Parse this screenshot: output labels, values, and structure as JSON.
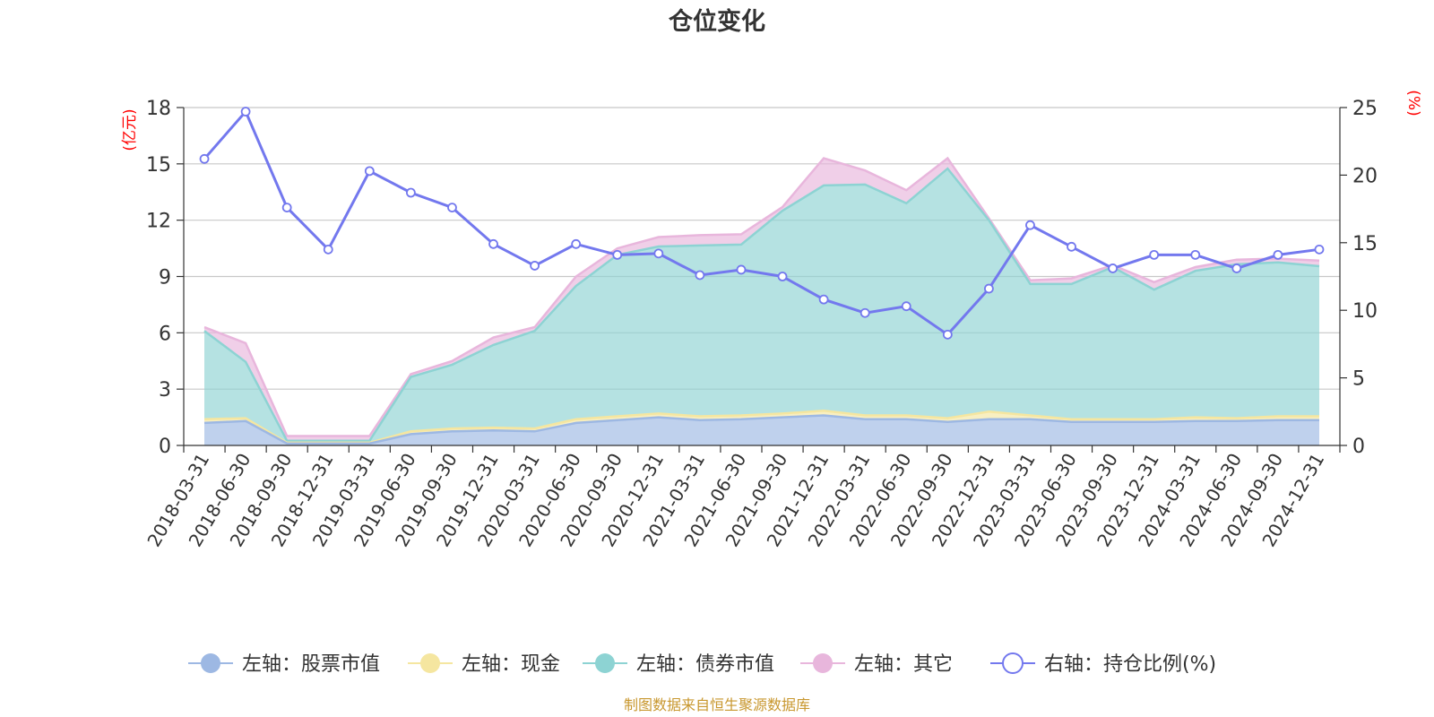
{
  "chart_data": {
    "type": "area",
    "title": "仓位变化",
    "source": "制图数据来自恒生聚源数据库",
    "left_axis": {
      "unit": "(亿元)",
      "ylim": [
        0,
        18
      ],
      "ticks": [
        0,
        3,
        6,
        9,
        12,
        15,
        18
      ]
    },
    "right_axis": {
      "unit": "(%)",
      "ylim": [
        0,
        25
      ],
      "ticks": [
        0,
        5,
        10,
        15,
        20,
        25
      ]
    },
    "categories": [
      "2018-03-31",
      "2018-06-30",
      "2018-09-30",
      "2018-12-31",
      "2019-03-31",
      "2019-06-30",
      "2019-09-30",
      "2019-12-31",
      "2020-03-31",
      "2020-06-30",
      "2020-09-30",
      "2020-12-31",
      "2021-03-31",
      "2021-06-30",
      "2021-09-30",
      "2021-12-31",
      "2022-03-31",
      "2022-06-30",
      "2022-09-30",
      "2022-12-31",
      "2023-03-31",
      "2023-06-30",
      "2023-09-30",
      "2023-12-31",
      "2024-03-31",
      "2024-06-30",
      "2024-09-30",
      "2024-12-31"
    ],
    "series": [
      {
        "name": "左轴：股票市值",
        "axis": "left",
        "stack": true,
        "color": "#9db8e3",
        "values": [
          1.2,
          1.3,
          0.1,
          0.1,
          0.1,
          0.6,
          0.75,
          0.8,
          0.75,
          1.2,
          1.35,
          1.5,
          1.35,
          1.4,
          1.5,
          1.6,
          1.4,
          1.4,
          1.25,
          1.4,
          1.4,
          1.25,
          1.25,
          1.25,
          1.3,
          1.3,
          1.35,
          1.35
        ]
      },
      {
        "name": "左轴：现金",
        "axis": "left",
        "stack": true,
        "color": "#f5e6a0",
        "values": [
          0.2,
          0.15,
          0.05,
          0.05,
          0.05,
          0.15,
          0.15,
          0.15,
          0.15,
          0.2,
          0.2,
          0.2,
          0.2,
          0.2,
          0.2,
          0.25,
          0.2,
          0.2,
          0.2,
          0.4,
          0.2,
          0.15,
          0.15,
          0.15,
          0.2,
          0.15,
          0.2,
          0.2
        ]
      },
      {
        "name": "左轴：债券市值",
        "axis": "left",
        "stack": true,
        "color": "#8dd3d3",
        "values": [
          4.7,
          3.0,
          0.1,
          0.1,
          0.1,
          2.9,
          3.4,
          4.4,
          5.2,
          7.1,
          8.6,
          8.9,
          9.1,
          9.1,
          10.8,
          12.0,
          12.3,
          11.3,
          13.3,
          10.2,
          7.0,
          7.2,
          8.1,
          6.9,
          7.8,
          8.2,
          8.2,
          8.0
        ]
      },
      {
        "name": "左轴：其它",
        "axis": "left",
        "stack": true,
        "color": "#e8b6dc",
        "values": [
          0.2,
          1.0,
          0.25,
          0.25,
          0.25,
          0.15,
          0.2,
          0.4,
          0.2,
          0.5,
          0.35,
          0.5,
          0.55,
          0.55,
          0.2,
          1.45,
          0.75,
          0.7,
          0.55,
          0.1,
          0.2,
          0.3,
          0.1,
          0.4,
          0.2,
          0.25,
          0.2,
          0.3
        ]
      },
      {
        "name": "右轴：持仓比例(%)",
        "axis": "right",
        "stack": false,
        "color": "#7378ee",
        "values": [
          21.2,
          24.7,
          17.6,
          14.5,
          20.3,
          18.7,
          17.6,
          14.9,
          13.3,
          14.9,
          14.1,
          14.2,
          12.6,
          13.0,
          12.5,
          10.8,
          9.8,
          10.3,
          8.2,
          11.6,
          16.3,
          14.7,
          13.1,
          14.1,
          14.1,
          13.1,
          14.1,
          14.5
        ]
      }
    ]
  }
}
